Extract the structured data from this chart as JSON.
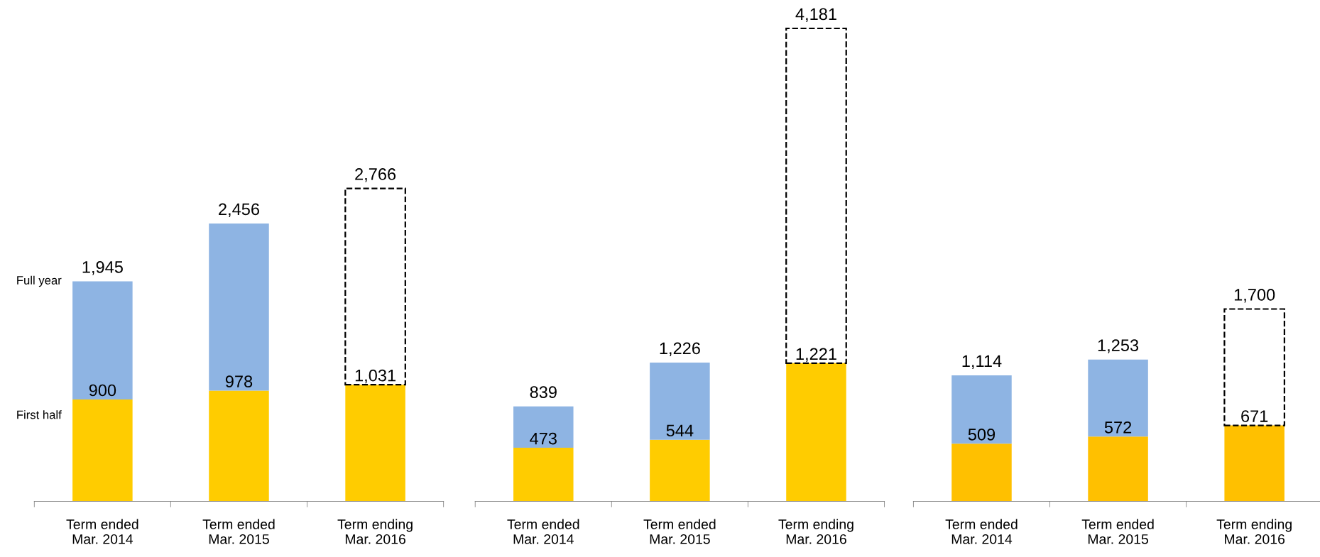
{
  "chart_data": [
    {
      "type": "bar",
      "stacked": true,
      "categories": [
        "Term ended\nMar. 2014",
        "Term ended\nMar. 2015",
        "Term ending\nMar. 2016"
      ],
      "series": [
        {
          "name": "First half",
          "color": "#ffcc00",
          "values": [
            900,
            978,
            1031
          ],
          "value_labels": [
            "900",
            "978",
            "1,031"
          ]
        },
        {
          "name": "Full year",
          "color": "#8eb4e3",
          "values": [
            1045,
            1478,
            null
          ]
        },
        {
          "color": "#000000",
          "line_style": "dashed",
          "values": [
            null,
            null,
            1735
          ]
        }
      ],
      "totals": [
        "1,945",
        "2,456",
        "2,766"
      ]
    },
    {
      "type": "bar",
      "stacked": true,
      "categories": [
        "Term ended\nMar. 2014",
        "Term ended\nMar. 2015",
        "Term ending\nMar. 2016"
      ],
      "series": [
        {
          "color": "#ffcc00",
          "values": [
            473,
            544,
            1221
          ],
          "value_labels": [
            "473",
            "544",
            "1,221"
          ]
        },
        {
          "color": "#8eb4e3",
          "values": [
            366,
            682,
            null
          ]
        },
        {
          "color": "#000000",
          "line_style": "dashed",
          "values": [
            null,
            null,
            2960
          ]
        }
      ],
      "totals": [
        "839",
        "1,226",
        "4,181"
      ]
    },
    {
      "type": "bar",
      "stacked": true,
      "categories": [
        "Term ended\nMar. 2014",
        "Term ended\nMar. 2015",
        "Term ending\nMar. 2016"
      ],
      "series": [
        {
          "color": "#ffc000",
          "values": [
            509,
            572,
            671
          ],
          "value_labels": [
            "509",
            "572",
            "671"
          ]
        },
        {
          "color": "#8eb4e3",
          "values": [
            605,
            681,
            null
          ]
        },
        {
          "color": "#000000",
          "line_style": "dashed",
          "values": [
            null,
            null,
            1029
          ]
        }
      ],
      "totals": [
        "1,114",
        "1,253",
        "1,700"
      ]
    }
  ]
}
